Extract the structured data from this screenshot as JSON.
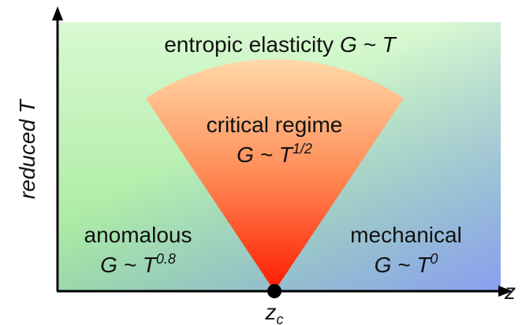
{
  "diagram": {
    "regions": [
      {
        "name": "entropic elasticity",
        "law": "G ~ T"
      },
      {
        "name": "critical regime",
        "law": "G ~ T",
        "exponent": "1/2"
      },
      {
        "name": "anomalous",
        "law": "G ~ T",
        "exponent": "0.8"
      },
      {
        "name": "mechanical",
        "law": "G ~ T",
        "exponent": "0"
      }
    ],
    "y_axis_label": "reduced T",
    "x_axis_label": "z",
    "critical_point": {
      "base": "z",
      "subscript": "c"
    }
  }
}
